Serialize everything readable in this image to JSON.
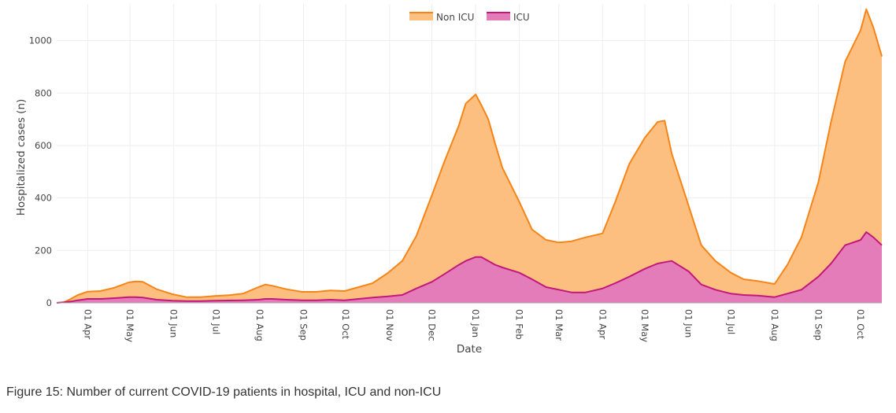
{
  "chart_data": {
    "type": "area",
    "stacked": true,
    "xlabel": "Date",
    "ylabel": "Hospitalized cases (n)",
    "x_range": [
      "2020-03-10",
      "2021-10-16"
    ],
    "ylim": [
      0,
      1140
    ],
    "y_ticks": [
      0,
      200,
      400,
      600,
      800,
      1000
    ],
    "x_ticks": [
      {
        "date": "2020-04-01",
        "label": "01 Apr"
      },
      {
        "date": "2020-05-01",
        "label": "01 May"
      },
      {
        "date": "2020-06-01",
        "label": "01 Jun"
      },
      {
        "date": "2020-07-01",
        "label": "01 Jul"
      },
      {
        "date": "2020-08-01",
        "label": "01 Aug"
      },
      {
        "date": "2020-09-01",
        "label": "01 Sep"
      },
      {
        "date": "2020-10-01",
        "label": "01 Oct"
      },
      {
        "date": "2020-11-01",
        "label": "01 Nov"
      },
      {
        "date": "2020-12-01",
        "label": "01 Dec"
      },
      {
        "date": "2021-01-01",
        "label": "01 Jan"
      },
      {
        "date": "2021-02-01",
        "label": "01 Feb"
      },
      {
        "date": "2021-03-01",
        "label": "01 Mar"
      },
      {
        "date": "2021-04-01",
        "label": "01 Apr"
      },
      {
        "date": "2021-05-01",
        "label": "01 May"
      },
      {
        "date": "2021-06-01",
        "label": "01 Jun"
      },
      {
        "date": "2021-07-01",
        "label": "01 Jul"
      },
      {
        "date": "2021-08-01",
        "label": "01 Aug"
      },
      {
        "date": "2021-09-01",
        "label": "01 Sep"
      },
      {
        "date": "2021-10-01",
        "label": "01 Oct"
      }
    ],
    "grid": true,
    "legend_position": "top-center",
    "x": [
      "2020-03-10",
      "2020-03-15",
      "2020-03-20",
      "2020-03-25",
      "2020-04-01",
      "2020-04-10",
      "2020-04-20",
      "2020-04-30",
      "2020-05-05",
      "2020-05-10",
      "2020-05-20",
      "2020-05-31",
      "2020-06-10",
      "2020-06-20",
      "2020-06-30",
      "2020-07-10",
      "2020-07-20",
      "2020-07-31",
      "2020-08-05",
      "2020-08-10",
      "2020-08-20",
      "2020-08-31",
      "2020-09-10",
      "2020-09-20",
      "2020-09-30",
      "2020-10-10",
      "2020-10-20",
      "2020-10-31",
      "2020-11-10",
      "2020-11-20",
      "2020-12-01",
      "2020-12-10",
      "2020-12-20",
      "2020-12-25",
      "2021-01-01",
      "2021-01-05",
      "2021-01-10",
      "2021-01-15",
      "2021-01-20",
      "2021-02-01",
      "2021-02-10",
      "2021-02-20",
      "2021-03-01",
      "2021-03-10",
      "2021-03-20",
      "2021-04-01",
      "2021-04-10",
      "2021-04-20",
      "2021-05-01",
      "2021-05-10",
      "2021-05-15",
      "2021-05-20",
      "2021-06-01",
      "2021-06-10",
      "2021-06-20",
      "2021-07-01",
      "2021-07-10",
      "2021-07-20",
      "2021-08-01",
      "2021-08-10",
      "2021-08-20",
      "2021-09-01",
      "2021-09-10",
      "2021-09-20",
      "2021-10-01",
      "2021-10-05",
      "2021-10-10",
      "2021-10-16"
    ],
    "series": [
      {
        "name": "Non ICU",
        "color": "#f58518",
        "fill": "#fdbf80",
        "values": [
          0,
          0,
          10,
          20,
          28,
          30,
          40,
          56,
          60,
          60,
          40,
          25,
          15,
          15,
          18,
          20,
          25,
          48,
          55,
          50,
          40,
          32,
          32,
          35,
          35,
          45,
          55,
          90,
          130,
          200,
          330,
          430,
          530,
          600,
          620,
          580,
          540,
          460,
          380,
          270,
          190,
          180,
          180,
          195,
          210,
          210,
          310,
          430,
          500,
          540,
          540,
          410,
          250,
          150,
          110,
          80,
          60,
          55,
          50,
          110,
          200,
          360,
          540,
          700,
          800,
          850,
          800,
          720
        ]
      },
      {
        "name": "ICU",
        "color": "#c2187a",
        "fill": "#e47cb9",
        "values": [
          0,
          2,
          5,
          10,
          15,
          15,
          18,
          22,
          22,
          20,
          12,
          8,
          7,
          7,
          8,
          9,
          10,
          12,
          15,
          15,
          12,
          10,
          10,
          12,
          10,
          15,
          20,
          25,
          30,
          55,
          80,
          110,
          145,
          160,
          175,
          175,
          160,
          145,
          135,
          115,
          90,
          60,
          50,
          40,
          40,
          55,
          75,
          100,
          130,
          150,
          155,
          160,
          120,
          70,
          50,
          35,
          30,
          28,
          22,
          35,
          50,
          100,
          150,
          220,
          240,
          270,
          250,
          220
        ]
      }
    ]
  },
  "legend": [
    {
      "label": "Non ICU",
      "color": "#f58518",
      "fill": "#fdbf80"
    },
    {
      "label": "ICU",
      "color": "#c2187a",
      "fill": "#e47cb9"
    }
  ],
  "caption": "Figure 15: Number of current COVID-19 patients in hospital, ICU and non-ICU"
}
